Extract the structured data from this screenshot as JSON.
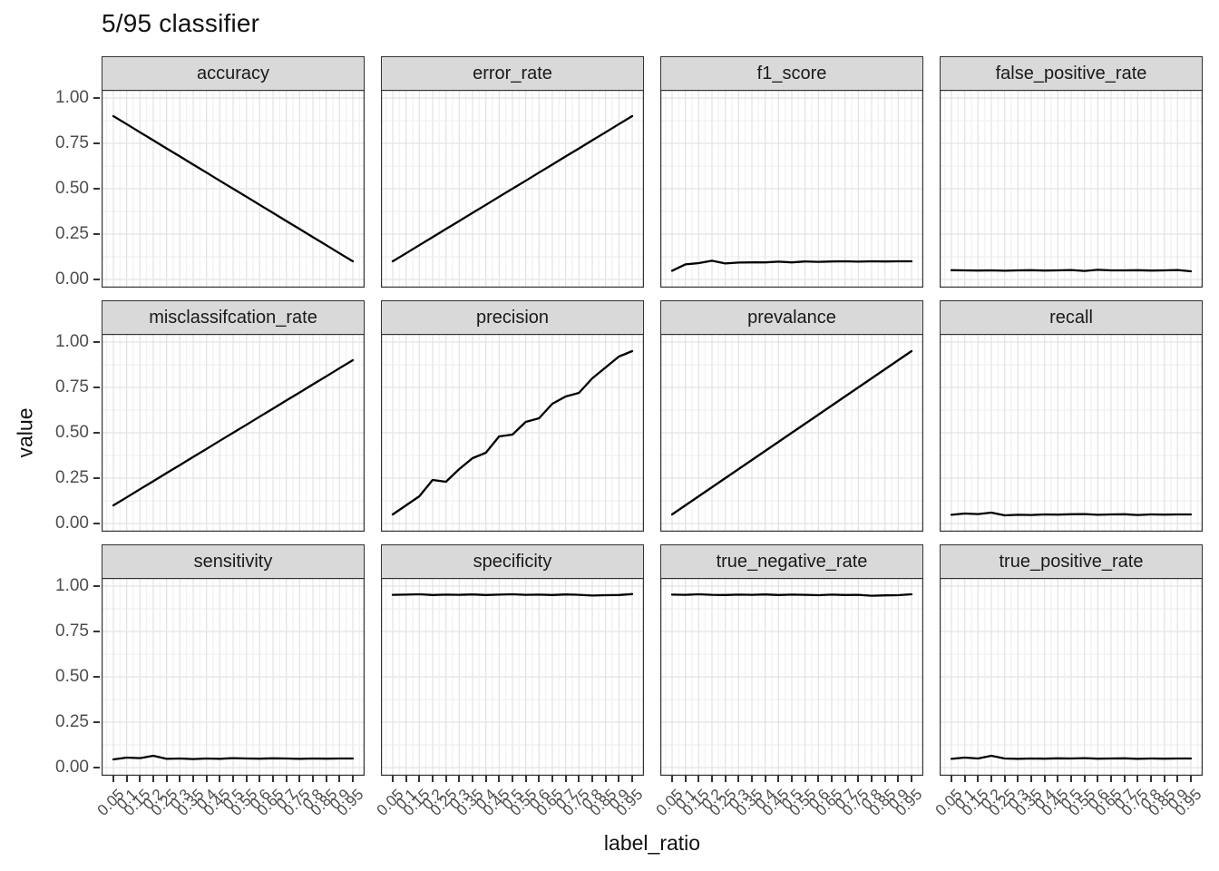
{
  "title": "5/95 classifier",
  "colors": {
    "line": "#000000",
    "strip_bg": "#d9d9d9",
    "strip_border": "#333333",
    "panel_bg": "#ffffff",
    "panel_border": "#333333",
    "grid_major": "#e4e4e4",
    "grid_minor": "#f1f1f1",
    "tick_mark": "#333333",
    "tick_label": "#4d4d4d",
    "text": "#111111"
  },
  "chart_data": {
    "type": "line",
    "title": "5/95 classifier",
    "xlabel": "label_ratio",
    "ylabel": "value",
    "ylim": [
      0,
      1
    ],
    "y_breaks": [
      0,
      0.25,
      0.5,
      0.75,
      1.0
    ],
    "y_tick_labels": [
      "1.00",
      "0.75",
      "0.50",
      "0.25",
      "0.00"
    ],
    "x_tick_labels": [
      "0.05",
      "0.1",
      "0.15",
      "0.2",
      "0.25",
      "0.3",
      "0.35",
      "0.4",
      "0.45",
      "0.5",
      "0.55",
      "0.6",
      "0.65",
      "0.7",
      "0.75",
      "0.8",
      "0.85",
      "0.9",
      "0.95"
    ],
    "x": [
      0.05,
      0.1,
      0.15,
      0.2,
      0.25,
      0.3,
      0.35,
      0.4,
      0.45,
      0.5,
      0.55,
      0.6,
      0.65,
      0.7,
      0.75,
      0.8,
      0.85,
      0.9,
      0.95
    ],
    "facet_layout": {
      "rows": 3,
      "cols": 4
    },
    "legend": "none",
    "grid": "major and minor light-gray gridlines on white panels",
    "facets": [
      {
        "label": "accuracy",
        "values": [
          0.9,
          0.856,
          0.811,
          0.767,
          0.722,
          0.678,
          0.633,
          0.589,
          0.544,
          0.5,
          0.456,
          0.411,
          0.367,
          0.322,
          0.278,
          0.233,
          0.189,
          0.144,
          0.1
        ]
      },
      {
        "label": "error_rate",
        "values": [
          0.1,
          0.144,
          0.189,
          0.233,
          0.278,
          0.322,
          0.367,
          0.411,
          0.456,
          0.5,
          0.544,
          0.589,
          0.633,
          0.678,
          0.722,
          0.767,
          0.811,
          0.856,
          0.9
        ]
      },
      {
        "label": "f1_score",
        "values": [
          0.048,
          0.083,
          0.09,
          0.103,
          0.088,
          0.093,
          0.094,
          0.094,
          0.098,
          0.094,
          0.099,
          0.097,
          0.099,
          0.1,
          0.098,
          0.1,
          0.099,
          0.1,
          0.1
        ]
      },
      {
        "label": "false_positive_rate",
        "values": [
          0.051,
          0.05,
          0.049,
          0.05,
          0.048,
          0.05,
          0.051,
          0.049,
          0.05,
          0.052,
          0.047,
          0.053,
          0.05,
          0.05,
          0.051,
          0.049,
          0.05,
          0.052,
          0.045
        ]
      },
      {
        "label": "misclassifcation_rate",
        "values": [
          0.1,
          0.144,
          0.189,
          0.233,
          0.278,
          0.322,
          0.367,
          0.411,
          0.456,
          0.5,
          0.544,
          0.589,
          0.633,
          0.678,
          0.722,
          0.767,
          0.811,
          0.856,
          0.9
        ]
      },
      {
        "label": "precision",
        "values": [
          0.05,
          0.1,
          0.15,
          0.24,
          0.23,
          0.3,
          0.36,
          0.39,
          0.48,
          0.49,
          0.56,
          0.58,
          0.66,
          0.7,
          0.72,
          0.8,
          0.86,
          0.92,
          0.95
        ]
      },
      {
        "label": "prevalance",
        "values": [
          0.05,
          0.1,
          0.15,
          0.2,
          0.25,
          0.3,
          0.35,
          0.4,
          0.45,
          0.5,
          0.55,
          0.6,
          0.65,
          0.7,
          0.75,
          0.8,
          0.85,
          0.9,
          0.95
        ]
      },
      {
        "label": "recall",
        "values": [
          0.048,
          0.055,
          0.052,
          0.06,
          0.045,
          0.048,
          0.047,
          0.05,
          0.049,
          0.051,
          0.052,
          0.048,
          0.05,
          0.051,
          0.047,
          0.05,
          0.049,
          0.05,
          0.05
        ]
      },
      {
        "label": "sensitivity",
        "values": [
          0.045,
          0.055,
          0.052,
          0.065,
          0.048,
          0.05,
          0.047,
          0.05,
          0.048,
          0.052,
          0.05,
          0.049,
          0.051,
          0.05,
          0.048,
          0.05,
          0.049,
          0.05,
          0.05
        ]
      },
      {
        "label": "specificity",
        "values": [
          0.952,
          0.953,
          0.955,
          0.951,
          0.953,
          0.952,
          0.954,
          0.951,
          0.953,
          0.955,
          0.952,
          0.953,
          0.951,
          0.954,
          0.952,
          0.948,
          0.95,
          0.951,
          0.956
        ]
      },
      {
        "label": "true_negative_rate",
        "values": [
          0.953,
          0.952,
          0.955,
          0.952,
          0.951,
          0.953,
          0.952,
          0.954,
          0.951,
          0.953,
          0.952,
          0.95,
          0.953,
          0.951,
          0.952,
          0.947,
          0.949,
          0.95,
          0.955
        ]
      },
      {
        "label": "true_positive_rate",
        "values": [
          0.048,
          0.055,
          0.05,
          0.065,
          0.05,
          0.048,
          0.05,
          0.049,
          0.051,
          0.05,
          0.052,
          0.049,
          0.05,
          0.051,
          0.048,
          0.05,
          0.049,
          0.05,
          0.05
        ]
      }
    ]
  }
}
